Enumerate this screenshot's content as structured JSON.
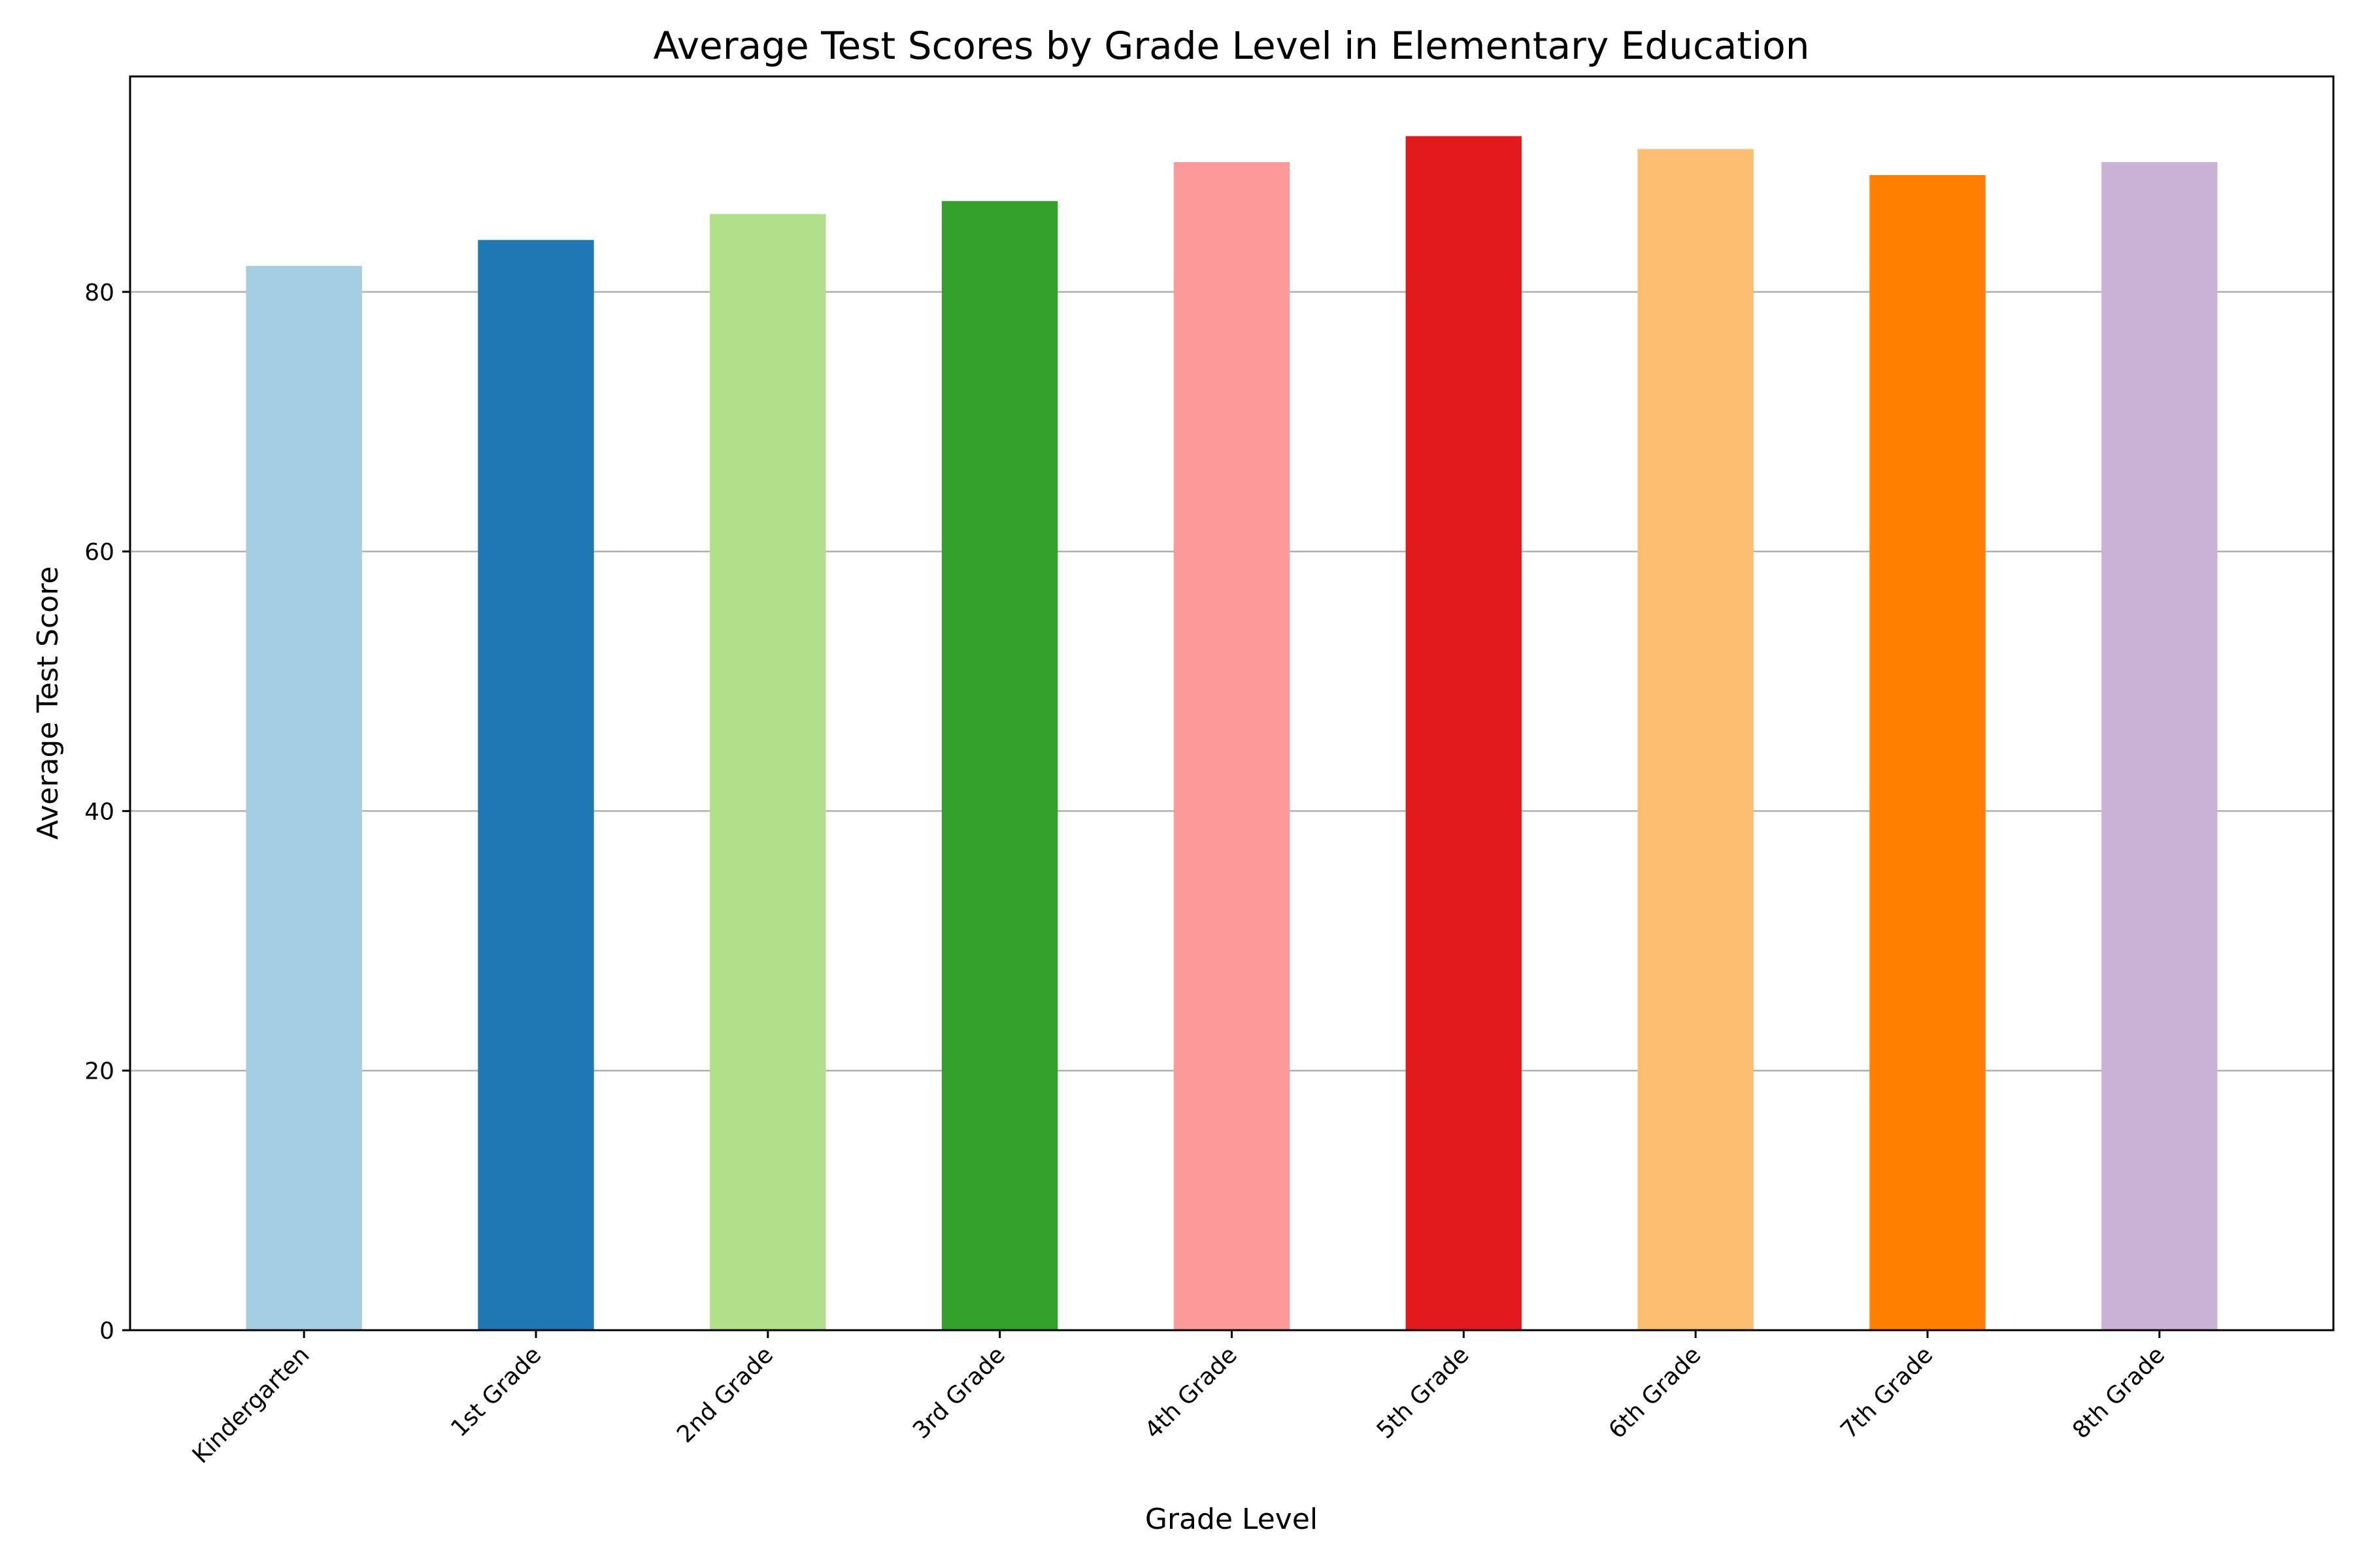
{
  "chart_data": {
    "type": "bar",
    "title": "Average Test Scores by Grade Level in Elementary Education",
    "xlabel": "Grade Level",
    "ylabel": "Average Test Score",
    "categories": [
      "Kindergarten",
      "1st Grade",
      "2nd Grade",
      "3rd Grade",
      "4th Grade",
      "5th Grade",
      "6th Grade",
      "7th Grade",
      "8th Grade"
    ],
    "values": [
      82,
      84,
      86,
      87,
      90,
      92,
      91,
      89,
      90
    ],
    "colors": [
      "#a6cee3",
      "#1f78b4",
      "#b2df8a",
      "#33a02c",
      "#fb9a99",
      "#e31a1c",
      "#fdbf6f",
      "#ff7f00",
      "#cab2d6"
    ],
    "ylim": [
      0,
      96.6
    ],
    "yticks": [
      0,
      20,
      40,
      60,
      80
    ],
    "grid": "y",
    "legend": "none"
  }
}
